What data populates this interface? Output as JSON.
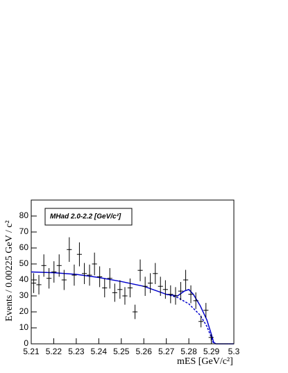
{
  "chart_data": {
    "type": "errorbar",
    "x_label": "mES [GeV/c²]",
    "y_label": "Events / 0.00225 GeV / c²",
    "annotation": "MHad 2.0-2.2 [GeV/c²]",
    "xlim": [
      5.21,
      5.3
    ],
    "xticks": [
      5.21,
      5.22,
      5.23,
      5.24,
      5.25,
      5.26,
      5.27,
      5.28,
      5.29,
      5.3
    ],
    "ylim": [
      0,
      90
    ],
    "yticks": [
      0,
      10,
      20,
      30,
      40,
      50,
      60,
      70,
      80
    ],
    "points": {
      "color": "#000000",
      "x": [
        5.2111,
        5.2134,
        5.2156,
        5.2179,
        5.2201,
        5.2224,
        5.2246,
        5.2269,
        5.2291,
        5.2314,
        5.2336,
        5.2359,
        5.2381,
        5.2404,
        5.2426,
        5.2449,
        5.2471,
        5.2494,
        5.2516,
        5.2539,
        5.2561,
        5.2584,
        5.2606,
        5.2629,
        5.2651,
        5.2674,
        5.2696,
        5.2719,
        5.2741,
        5.2764,
        5.2786,
        5.2809,
        5.2831,
        5.2854,
        5.2876,
        5.2899,
        5.2921,
        5.2944,
        5.2966,
        5.2989
      ],
      "values": [
        38,
        37,
        49,
        41,
        45,
        49,
        40,
        59,
        43,
        56,
        44,
        43,
        50,
        42,
        35,
        41,
        32,
        34,
        30,
        35,
        20,
        46,
        36,
        38,
        44,
        36,
        34,
        31,
        30,
        33,
        40,
        31,
        27,
        14,
        21,
        4,
        0,
        0,
        0,
        0
      ],
      "errors": [
        6.2,
        6.1,
        7.0,
        6.4,
        6.7,
        7.0,
        6.3,
        7.7,
        6.6,
        7.5,
        6.6,
        6.6,
        7.1,
        6.5,
        5.9,
        6.4,
        5.7,
        5.8,
        5.5,
        5.9,
        4.5,
        6.8,
        6.0,
        6.2,
        6.6,
        6.0,
        5.8,
        5.6,
        5.5,
        5.7,
        6.3,
        5.6,
        5.2,
        3.7,
        4.6,
        2.0,
        0,
        0,
        0,
        0
      ]
    },
    "curves": [
      {
        "color": "#0000cc",
        "dash": false,
        "x": [
          5.21,
          5.22,
          5.23,
          5.24,
          5.25,
          5.26,
          5.27,
          5.275,
          5.278,
          5.28,
          5.282,
          5.285,
          5.288,
          5.29,
          5.291,
          5.292,
          5.3
        ],
        "values": [
          45,
          44.5,
          43.5,
          41.5,
          39,
          36,
          31,
          30,
          33,
          34,
          31,
          24,
          15,
          6,
          1,
          0,
          0
        ]
      },
      {
        "color": "#0000cc",
        "dash": true,
        "x": [
          5.27,
          5.275,
          5.28,
          5.285,
          5.288,
          5.29,
          5.291
        ],
        "values": [
          31,
          29,
          25,
          18,
          11,
          4,
          0
        ]
      }
    ]
  }
}
